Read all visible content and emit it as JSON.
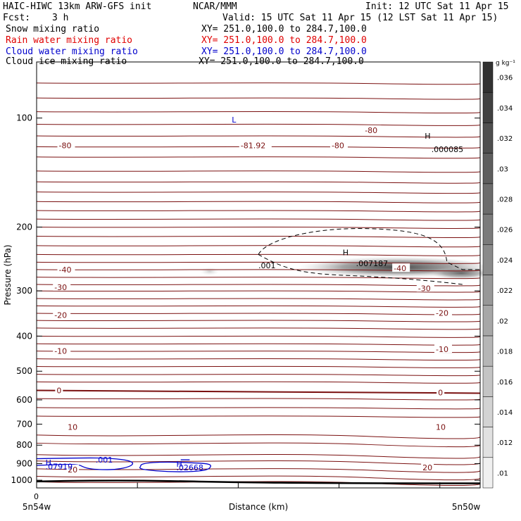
{
  "header": {
    "title": "HAIC-HIWC 13km ARW-GFS init",
    "org": "NCAR/MMM",
    "init": "Init: 12 UTC Sat 11 Apr 15",
    "fcst_label": "Fcst:",
    "fcst_value": "3 h",
    "valid": "Valid: 15 UTC Sat 11 Apr 15 (12 LST Sat 11 Apr 15)",
    "fields": [
      {
        "name": "Snow mixing ratio",
        "xy": "XY= 251.0,100.0 to 284.7,100.0",
        "color": "#000000"
      },
      {
        "name": "Rain water mixing ratio",
        "xy": "XY= 251.0,100.0 to 284.7,100.0",
        "color": "#e00000"
      },
      {
        "name": "Cloud water mixing ratio",
        "xy": "XY= 251.0,100.0 to 284.7,100.0",
        "color": "#0000cc"
      },
      {
        "name": "Cloud ice mixing ratio",
        "xy": "XY= 251.0,100.0 to 284.7,100.0",
        "color": "#000000"
      }
    ]
  },
  "chart_data": {
    "type": "contour",
    "ylabel": "Pressure (hPa)",
    "xlabel": "Distance (km)",
    "y_scale": "log",
    "y_ticks": [
      100,
      200,
      300,
      400,
      500,
      600,
      700,
      800,
      900,
      1000
    ],
    "ylim": [
      1050,
      70
    ],
    "x_tick_label": "0",
    "x_left_label": "5n54w",
    "x_right_label": "5n50w",
    "colorbar": {
      "unit": "g kg⁻¹",
      "ticks": [
        ".01",
        ".012",
        ".014",
        ".016",
        ".018",
        ".02",
        ".022",
        ".024",
        ".026",
        ".028",
        ".03",
        ".032",
        ".034",
        ".036"
      ],
      "values": [
        0.01,
        0.012,
        0.014,
        0.016,
        0.018,
        0.02,
        0.022,
        0.024,
        0.026,
        0.028,
        0.03,
        0.032,
        0.034,
        0.036
      ]
    },
    "temperature_labels": [
      {
        "text": "-80",
        "p": 119,
        "x": 0.05
      },
      {
        "text": "-81.92",
        "p": 119,
        "x": 0.46
      },
      {
        "text": "-80",
        "p": 119,
        "x": 0.665
      },
      {
        "text": "-80",
        "p": 108,
        "x": 0.74
      },
      {
        "text": "-40",
        "p": 262,
        "x": 0.05
      },
      {
        "text": "-40",
        "p": 260,
        "x": 0.805
      },
      {
        "text": "-30",
        "p": 293,
        "x": 0.04
      },
      {
        "text": "-30",
        "p": 295,
        "x": 0.86
      },
      {
        "text": "-20",
        "p": 350,
        "x": 0.04
      },
      {
        "text": "-20",
        "p": 345,
        "x": 0.9
      },
      {
        "text": "-10",
        "p": 440,
        "x": 0.04
      },
      {
        "text": "-10",
        "p": 435,
        "x": 0.9
      },
      {
        "text": "0",
        "p": 565,
        "x": 0.045
      },
      {
        "text": "0",
        "p": 573,
        "x": 0.905
      },
      {
        "text": "10",
        "p": 713,
        "x": 0.07
      },
      {
        "text": "10",
        "p": 713,
        "x": 0.9
      },
      {
        "text": "20",
        "p": 935,
        "x": 0.07
      },
      {
        "text": "20",
        "p": 922,
        "x": 0.87
      }
    ],
    "extrema": [
      {
        "label": "L",
        "p": 101,
        "x": 0.44,
        "color": "#0000cc"
      },
      {
        "label": "H",
        "p": 112,
        "x": 0.875,
        "color": "#000000"
      },
      {
        "label": ".000085",
        "p": 122,
        "x": 0.89,
        "color": "#000000"
      },
      {
        "label": "H",
        "p": 235,
        "x": 0.69,
        "color": "#000000"
      },
      {
        "label": ".007187",
        "p": 252,
        "x": 0.72,
        "color": "#000000"
      },
      {
        "label": ".001",
        "p": 255,
        "x": 0.5,
        "color": "#000000"
      },
      {
        "label": ".001",
        "p": 877,
        "x": 0.133,
        "color": "#0000cc"
      },
      {
        "label": "H",
        "p": 894,
        "x": 0.02,
        "color": "#0000cc"
      },
      {
        "label": ".07919",
        "p": 915,
        "x": 0.02,
        "color": "#0000cc"
      },
      {
        "label": "H",
        "p": 902,
        "x": 0.315,
        "color": "#0000cc"
      },
      {
        "label": ".02668",
        "p": 922,
        "x": 0.315,
        "color": "#0000cc"
      }
    ]
  }
}
